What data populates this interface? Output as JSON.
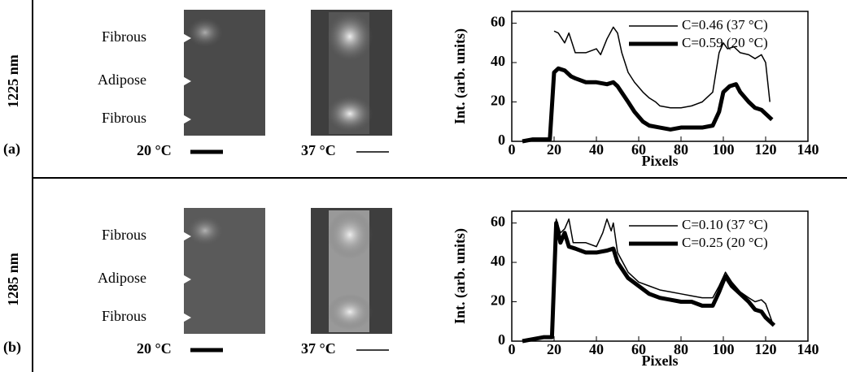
{
  "panels": [
    {
      "label": "(a)",
      "wavelength": "1225 nm",
      "tissue_labels": [
        "Fibrous",
        "Adipose",
        "Fibrous"
      ],
      "image_labels": [
        "20 °C",
        "37 °C"
      ]
    },
    {
      "label": "(b)",
      "wavelength": "1285 nm",
      "tissue_labels": [
        "Fibrous",
        "Adipose",
        "Fibrous"
      ],
      "image_labels": [
        "20 °C",
        "37 °C"
      ]
    }
  ],
  "chart_data": [
    {
      "type": "line",
      "x_label": "Pixels",
      "y_label": "Int. (arb. units)",
      "xlim": [
        0,
        140
      ],
      "ylim": [
        0,
        66
      ],
      "xticks": [
        0,
        20,
        40,
        60,
        80,
        100,
        120,
        140
      ],
      "yticks": [
        0,
        20,
        40,
        60
      ],
      "series": [
        {
          "name": "C=0.46 (37 °C)",
          "color": "#000000",
          "line_width": 1.5,
          "x": [
            20,
            22,
            25,
            27,
            30,
            35,
            40,
            42,
            45,
            48,
            50,
            52,
            55,
            58,
            62,
            65,
            68,
            70,
            75,
            80,
            85,
            90,
            95,
            98,
            100,
            102,
            105,
            108,
            112,
            115,
            118,
            120,
            122
          ],
          "values": [
            56,
            55,
            50,
            55,
            45,
            45,
            47,
            44,
            52,
            58,
            55,
            45,
            35,
            30,
            25,
            22,
            20,
            18,
            17,
            17,
            18,
            20,
            25,
            45,
            50,
            47,
            48,
            45,
            44,
            42,
            44,
            40,
            20
          ]
        },
        {
          "name": "C=0.59 (20 °C)",
          "color": "#000000",
          "line_width": 5,
          "x": [
            5,
            10,
            15,
            18,
            20,
            22,
            25,
            28,
            30,
            35,
            40,
            45,
            48,
            50,
            55,
            58,
            62,
            65,
            70,
            75,
            80,
            85,
            90,
            95,
            98,
            100,
            103,
            106,
            108,
            112,
            115,
            118,
            120,
            123
          ],
          "values": [
            0,
            1,
            1,
            1,
            35,
            37,
            36,
            33,
            32,
            30,
            30,
            29,
            30,
            28,
            20,
            15,
            10,
            8,
            7,
            6,
            7,
            7,
            7,
            8,
            15,
            25,
            28,
            29,
            25,
            20,
            17,
            16,
            14,
            11
          ]
        }
      ]
    },
    {
      "type": "line",
      "x_label": "Pixels",
      "y_label": "Int. (arb. units)",
      "xlim": [
        0,
        140
      ],
      "ylim": [
        0,
        66
      ],
      "xticks": [
        0,
        20,
        40,
        60,
        80,
        100,
        120,
        140
      ],
      "yticks": [
        0,
        20,
        40,
        60
      ],
      "series": [
        {
          "name": "C=0.10 (37 °C)",
          "color": "#000000",
          "line_width": 1.5,
          "x": [
            19,
            21,
            23,
            25,
            27,
            29,
            32,
            35,
            40,
            43,
            45,
            47,
            48,
            50,
            55,
            60,
            65,
            70,
            75,
            80,
            85,
            90,
            95,
            98,
            101,
            104,
            108,
            112,
            115,
            118,
            120,
            123
          ],
          "values": [
            2,
            62,
            55,
            57,
            62,
            50,
            50,
            50,
            48,
            55,
            62,
            56,
            60,
            45,
            35,
            30,
            28,
            26,
            25,
            24,
            23,
            22,
            22,
            28,
            35,
            30,
            25,
            22,
            20,
            21,
            19,
            10
          ]
        },
        {
          "name": "C=0.25 (20 °C)",
          "color": "#000000",
          "line_width": 5,
          "x": [
            5,
            10,
            15,
            19,
            21,
            23,
            25,
            27,
            30,
            35,
            40,
            45,
            48,
            50,
            55,
            60,
            65,
            70,
            75,
            80,
            85,
            90,
            95,
            98,
            101,
            104,
            108,
            112,
            115,
            118,
            120,
            124
          ],
          "values": [
            0,
            1,
            2,
            2,
            60,
            50,
            55,
            48,
            47,
            45,
            45,
            46,
            47,
            40,
            32,
            28,
            24,
            22,
            21,
            20,
            20,
            18,
            18,
            25,
            33,
            28,
            24,
            20,
            16,
            15,
            12,
            8
          ]
        }
      ]
    }
  ]
}
